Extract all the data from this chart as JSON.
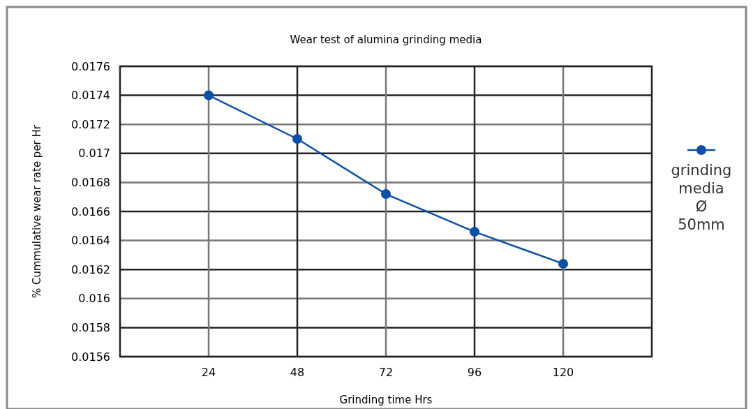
{
  "chart_data": {
    "type": "line",
    "title": "Wear test of alumina grinding media",
    "xlabel": "Grinding time Hrs",
    "ylabel": "% Cummulative wear rate per Hr",
    "x": [
      24,
      48,
      72,
      96,
      120
    ],
    "series": [
      {
        "name": "grinding media Ø 50mm",
        "color": "#0b4fa8",
        "values": [
          0.0174,
          0.0171,
          0.01672,
          0.01646,
          0.01624
        ]
      }
    ],
    "xlim": [
      0,
      144
    ],
    "xticks": [
      24,
      48,
      72,
      96,
      120
    ],
    "ylim": [
      0.0156,
      0.0176
    ],
    "yticks": [
      0.0156,
      0.0158,
      0.016,
      0.0162,
      0.0164,
      0.0166,
      0.0168,
      0.017,
      0.0172,
      0.0174,
      0.0176
    ],
    "grid": true,
    "legend": "right",
    "marker": "circle",
    "line_style": "solid"
  }
}
